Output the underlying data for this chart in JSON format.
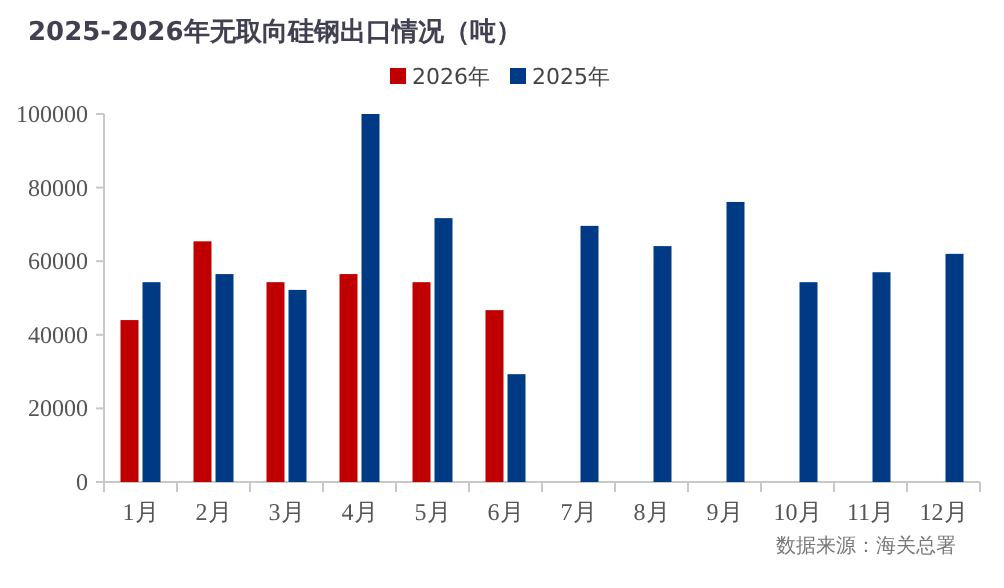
{
  "chart_data": {
    "type": "bar",
    "title": "2025-2026年无取向硅钢出口情况（吨）",
    "categories": [
      "1月",
      "2月",
      "3月",
      "4月",
      "5月",
      "6月",
      "7月",
      "8月",
      "9月",
      "10月",
      "11月",
      "12月"
    ],
    "series": [
      {
        "name": "2026年",
        "color": "#c00000",
        "values": [
          44000,
          65400,
          54300,
          56500,
          54300,
          46700,
          null,
          null,
          null,
          null,
          null,
          null
        ]
      },
      {
        "name": "2025年",
        "color": "#003a85",
        "values": [
          54300,
          56500,
          52200,
          100000,
          71700,
          29300,
          69600,
          64100,
          76100,
          54300,
          57000,
          62000
        ]
      }
    ],
    "ylim": [
      0,
      100000
    ],
    "yticks": [
      0,
      20000,
      40000,
      60000,
      80000,
      100000
    ],
    "grid": false,
    "legend": "top",
    "annotations": [
      "数据来源：海关总署"
    ]
  }
}
